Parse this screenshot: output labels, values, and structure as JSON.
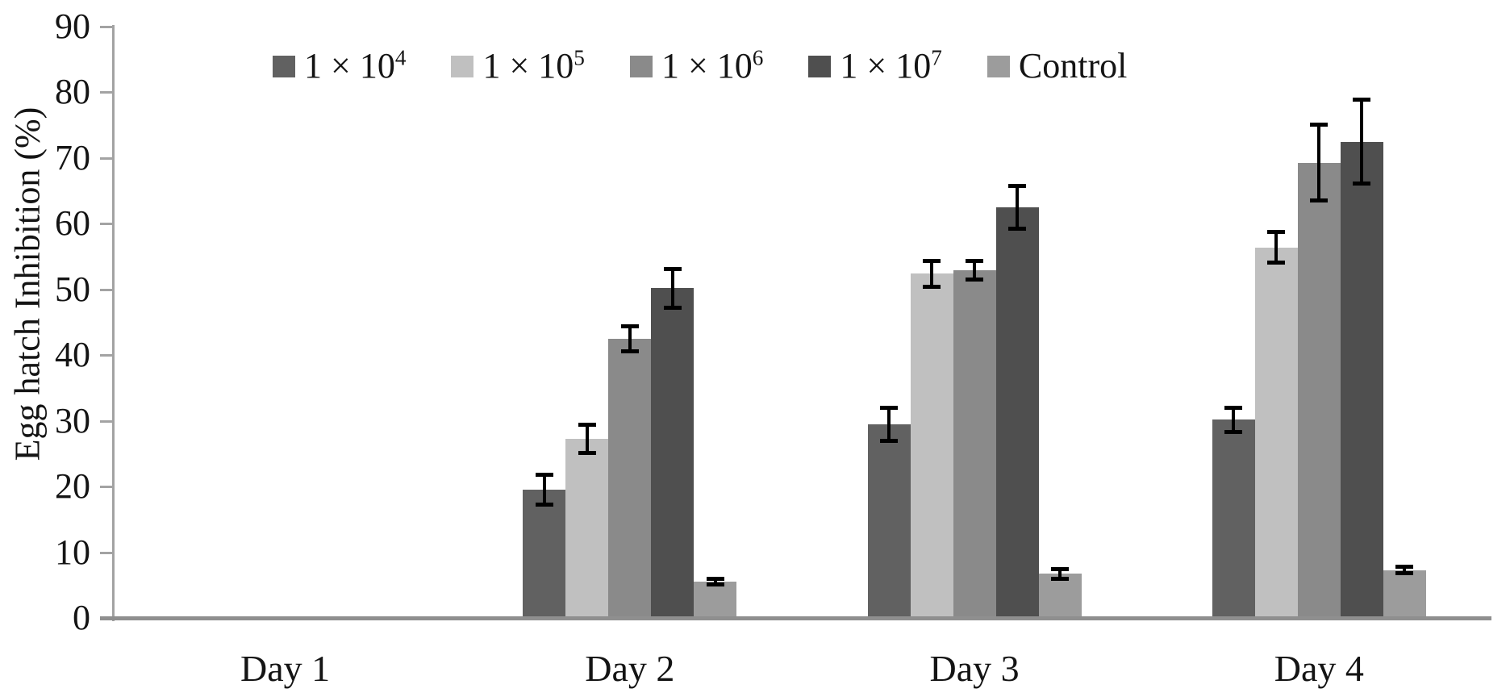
{
  "chart_data": {
    "type": "bar",
    "title": "",
    "xlabel": "",
    "ylabel": "Egg hatch Inhibition (%)",
    "ylim": [
      0,
      90
    ],
    "yticks": [
      0,
      10,
      20,
      30,
      40,
      50,
      60,
      70,
      80,
      90
    ],
    "grid": false,
    "legend_position": "top",
    "error_bars": true,
    "categories": [
      "Day 1",
      "Day 2",
      "Day 3",
      "Day 4"
    ],
    "series": [
      {
        "name": "1 × 10⁴",
        "label_base": "1 × 10",
        "label_exp": "4",
        "color": "#616161",
        "values": [
          0,
          19.5,
          29.5,
          30.2
        ],
        "errors": [
          0,
          2.3,
          2.6,
          1.9
        ]
      },
      {
        "name": "1 × 10⁵",
        "label_base": "1 × 10",
        "label_exp": "5",
        "color": "#c0c0c0",
        "values": [
          0,
          27.3,
          52.4,
          56.4
        ],
        "errors": [
          0,
          2.2,
          2.0,
          2.4
        ]
      },
      {
        "name": "1 × 10⁶",
        "label_base": "1 × 10",
        "label_exp": "6",
        "color": "#8a8a8a",
        "values": [
          0,
          42.5,
          52.9,
          69.3
        ],
        "errors": [
          0,
          2.0,
          1.5,
          5.8
        ]
      },
      {
        "name": "1 × 10⁷",
        "label_base": "1 × 10",
        "label_exp": "7",
        "color": "#4f4f4f",
        "values": [
          0,
          50.2,
          62.5,
          72.5
        ],
        "errors": [
          0,
          3.0,
          3.3,
          6.5
        ]
      },
      {
        "name": "Control",
        "label_base": "Control",
        "label_exp": "",
        "color": "#9c9c9c",
        "values": [
          0,
          5.5,
          6.7,
          7.3
        ],
        "errors": [
          0,
          0.5,
          0.8,
          0.6
        ]
      }
    ]
  },
  "colors": {
    "axis_line": "#a3a3a3",
    "baseline": "#8f8f8f",
    "error_bar": "#000000",
    "text": "#141414"
  }
}
